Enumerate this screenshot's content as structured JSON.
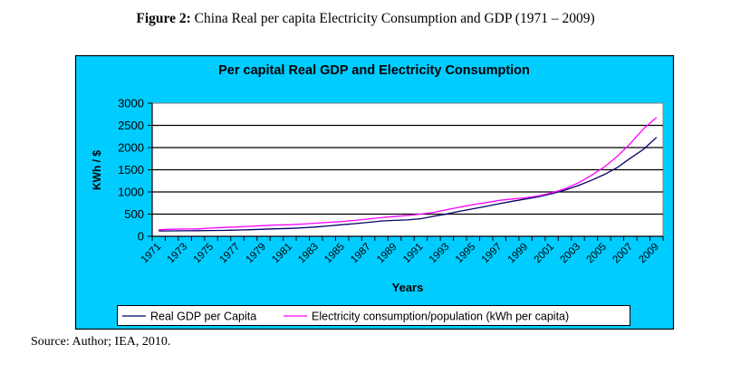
{
  "figure": {
    "label": "Figure 2:",
    "caption": "China Real per capita Electricity Consumption and GDP (1971 – 2009)",
    "source": "Source: Author; IEA, 2010."
  },
  "chart_data": {
    "type": "line",
    "title": "Per capital Real GDP and  Electricity Consumption",
    "xlabel": "Years",
    "ylabel": "KWh / $",
    "ylim": [
      0,
      3000
    ],
    "yticks": [
      0,
      500,
      1000,
      1500,
      2000,
      2500,
      3000
    ],
    "grid": true,
    "legend_position": "bottom",
    "background_color": "#00ccff",
    "plot_background": "#ffffff",
    "x": [
      1971,
      1972,
      1973,
      1974,
      1975,
      1976,
      1977,
      1978,
      1979,
      1980,
      1981,
      1982,
      1983,
      1984,
      1985,
      1986,
      1987,
      1988,
      1989,
      1990,
      1991,
      1992,
      1993,
      1994,
      1995,
      1996,
      1997,
      1998,
      1999,
      2000,
      2001,
      2002,
      2003,
      2004,
      2005,
      2006,
      2007,
      2008,
      2009
    ],
    "xtick_labels": [
      "1971",
      "1973",
      "1975",
      "1977",
      "1979",
      "1981",
      "1983",
      "1985",
      "1987",
      "1989",
      "1991",
      "1993",
      "1995",
      "1997",
      "1999",
      "2001",
      "2003",
      "2005",
      "2007",
      "2009"
    ],
    "series": [
      {
        "name": "Real GDP per Capita",
        "color": "#000066",
        "values": [
          120,
          122,
          125,
          127,
          130,
          132,
          140,
          150,
          160,
          170,
          178,
          192,
          210,
          235,
          262,
          285,
          315,
          345,
          360,
          370,
          395,
          450,
          505,
          565,
          620,
          675,
          735,
          790,
          840,
          890,
          960,
          1040,
          1140,
          1260,
          1390,
          1550,
          1760,
          1960,
          2230
        ]
      },
      {
        "name": "Electricity consumption/population (kWh per capita)",
        "color": "#ff00ff",
        "values": [
          150,
          160,
          165,
          168,
          185,
          200,
          210,
          225,
          240,
          255,
          262,
          275,
          295,
          315,
          335,
          360,
          390,
          420,
          445,
          470,
          500,
          540,
          600,
          660,
          715,
          760,
          810,
          840,
          870,
          910,
          980,
          1070,
          1200,
          1370,
          1560,
          1800,
          2090,
          2420,
          2680
        ]
      }
    ]
  }
}
